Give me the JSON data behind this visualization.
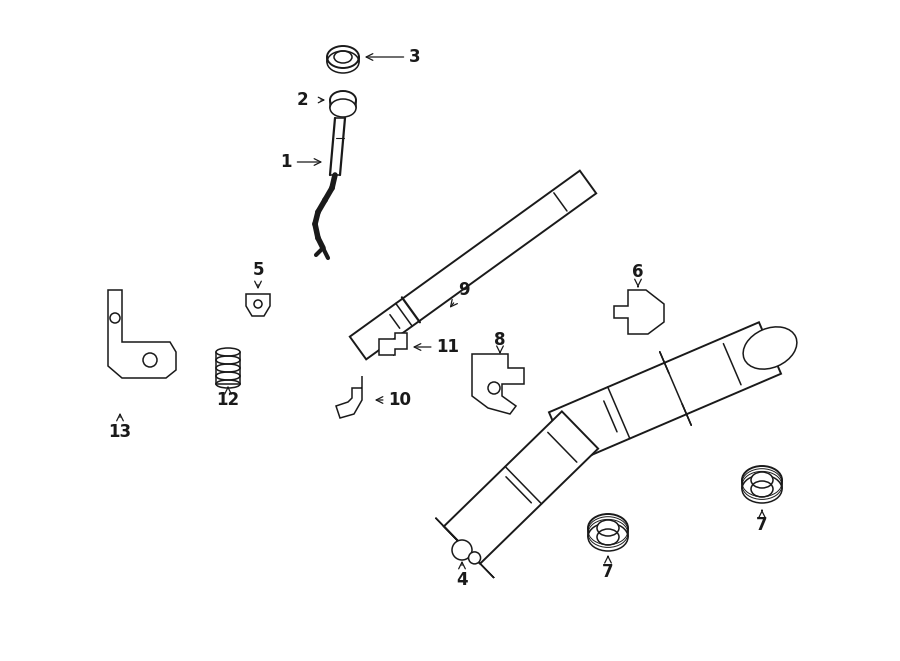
{
  "bg_color": "#ffffff",
  "line_color": "#1a1a1a",
  "fig_width": 9.0,
  "fig_height": 6.61,
  "dpi": 100,
  "lw": 1.1
}
